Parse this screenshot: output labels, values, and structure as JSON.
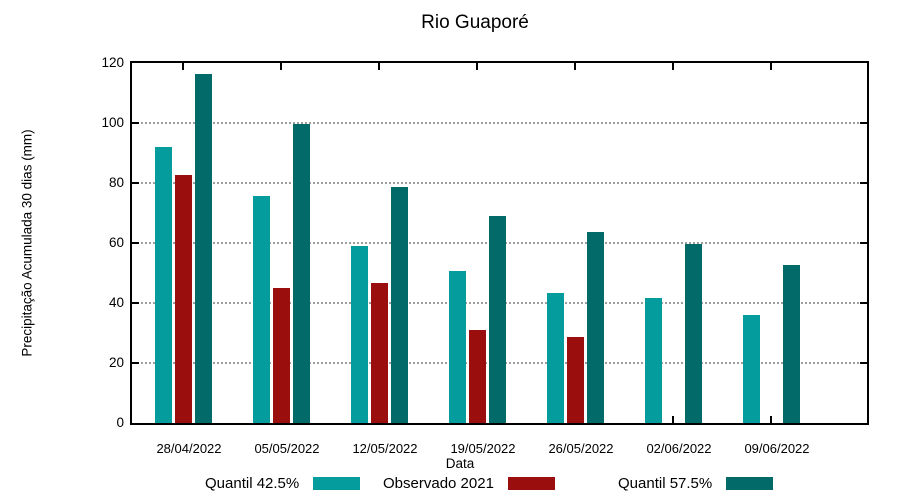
{
  "chart_data": {
    "type": "bar",
    "title": "Rio Guaporé",
    "xlabel": "Data",
    "ylabel": "Precipitação Acumulada 30 dias (mm)",
    "ylim": [
      0,
      120
    ],
    "ytick_step": 20,
    "yticks": [
      0,
      20,
      40,
      60,
      80,
      100,
      120
    ],
    "grid": "horizontal dotted gridlines at 20,40,60,80,100; full box border; inward mirrored ticks",
    "legend_position": "bottom-center, label left of color swatch",
    "categories": [
      "28/04/2022",
      "05/05/2022",
      "12/05/2022",
      "19/05/2022",
      "26/05/2022",
      "02/06/2022",
      "09/06/2022"
    ],
    "series": [
      {
        "name": "Quantil 42.5%",
        "color": "#049C9C",
        "values": [
          92,
          75.5,
          59,
          50.8,
          43.4,
          41.8,
          36
        ]
      },
      {
        "name": "Observado 2021",
        "color": "#9B0E0E",
        "values": [
          82.5,
          45,
          46.5,
          31,
          28.5,
          null,
          null
        ]
      },
      {
        "name": "Quantil 57.5%",
        "color": "#036A6A",
        "values": [
          116.2,
          99.5,
          78.8,
          69,
          63.8,
          59.5,
          52.7
        ]
      }
    ],
    "colors": {
      "axis": "#000000",
      "grid": "#9e9e9e",
      "background": "#ffffff",
      "text": "#000000"
    }
  }
}
